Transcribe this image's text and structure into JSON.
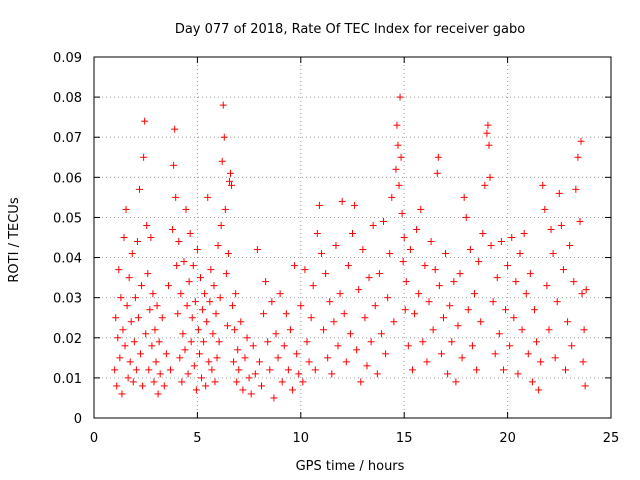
{
  "chart_data": {
    "type": "scatter",
    "title": "Day 077 of 2018, Rate Of TEC Index for receiver gabo",
    "xlabel": "GPS time / hours",
    "ylabel": "ROTI / TECUs",
    "xlim": [
      0,
      25
    ],
    "ylim": [
      0,
      0.09
    ],
    "xticks": [
      0,
      5,
      10,
      15,
      20,
      25
    ],
    "xtick_labels": [
      "0",
      "5",
      "10",
      "15",
      "20",
      "25"
    ],
    "yticks": [
      0,
      0.01,
      0.02,
      0.03,
      0.04,
      0.05,
      0.06,
      0.07,
      0.08,
      0.09
    ],
    "ytick_labels": [
      "0",
      "0.01",
      "0.02",
      "0.03",
      "0.04",
      "0.05",
      "0.06",
      "0.07",
      "0.08",
      "0.09"
    ],
    "grid": true,
    "marker": "+",
    "color": "#ff0000",
    "series": [
      {
        "values": [
          [
            1.0,
            0.012
          ],
          [
            1.05,
            0.025
          ],
          [
            1.1,
            0.008
          ],
          [
            1.15,
            0.02
          ],
          [
            1.2,
            0.037
          ],
          [
            1.25,
            0.015
          ],
          [
            1.3,
            0.03
          ],
          [
            1.35,
            0.006
          ],
          [
            1.4,
            0.022
          ],
          [
            1.45,
            0.045
          ],
          [
            1.5,
            0.018
          ],
          [
            1.55,
            0.052
          ],
          [
            1.6,
            0.028
          ],
          [
            1.65,
            0.01
          ],
          [
            1.7,
            0.035
          ],
          [
            1.75,
            0.014
          ],
          [
            1.8,
            0.024
          ],
          [
            1.85,
            0.041
          ],
          [
            1.9,
            0.009
          ],
          [
            1.95,
            0.019
          ],
          [
            2.0,
            0.03
          ],
          [
            2.05,
            0.012
          ],
          [
            2.1,
            0.044
          ],
          [
            2.15,
            0.025
          ],
          [
            2.2,
            0.057
          ],
          [
            2.25,
            0.016
          ],
          [
            2.3,
            0.033
          ],
          [
            2.35,
            0.008
          ],
          [
            2.4,
            0.065
          ],
          [
            2.45,
            0.074
          ],
          [
            2.5,
            0.021
          ],
          [
            2.55,
            0.048
          ],
          [
            2.6,
            0.036
          ],
          [
            2.65,
            0.012
          ],
          [
            2.7,
            0.027
          ],
          [
            2.75,
            0.045
          ],
          [
            2.8,
            0.018
          ],
          [
            2.85,
            0.031
          ],
          [
            2.9,
            0.009
          ],
          [
            2.95,
            0.022
          ],
          [
            3.0,
            0.014
          ],
          [
            3.05,
            0.028
          ],
          [
            3.1,
            0.006
          ],
          [
            3.15,
            0.019
          ],
          [
            3.2,
            0.011
          ],
          [
            3.3,
            0.025
          ],
          [
            3.4,
            0.008
          ],
          [
            3.5,
            0.016
          ],
          [
            3.6,
            0.033
          ],
          [
            3.7,
            0.012
          ],
          [
            3.8,
            0.047
          ],
          [
            3.85,
            0.063
          ],
          [
            3.9,
            0.072
          ],
          [
            3.95,
            0.055
          ],
          [
            4.0,
            0.038
          ],
          [
            4.05,
            0.026
          ],
          [
            4.1,
            0.044
          ],
          [
            4.15,
            0.015
          ],
          [
            4.2,
            0.031
          ],
          [
            4.25,
            0.009
          ],
          [
            4.3,
            0.021
          ],
          [
            4.35,
            0.039
          ],
          [
            4.4,
            0.017
          ],
          [
            4.45,
            0.052
          ],
          [
            4.5,
            0.028
          ],
          [
            4.55,
            0.011
          ],
          [
            4.6,
            0.034
          ],
          [
            4.65,
            0.046
          ],
          [
            4.7,
            0.019
          ],
          [
            4.75,
            0.025
          ],
          [
            4.8,
            0.038
          ],
          [
            4.85,
            0.013
          ],
          [
            4.9,
            0.029
          ],
          [
            4.95,
            0.007
          ],
          [
            5.0,
            0.042
          ],
          [
            5.05,
            0.022
          ],
          [
            5.1,
            0.016
          ],
          [
            5.15,
            0.035
          ],
          [
            5.2,
            0.01
          ],
          [
            5.25,
            0.027
          ],
          [
            5.3,
            0.019
          ],
          [
            5.35,
            0.031
          ],
          [
            5.4,
            0.008
          ],
          [
            5.45,
            0.024
          ],
          [
            5.5,
            0.055
          ],
          [
            5.55,
            0.014
          ],
          [
            5.6,
            0.029
          ],
          [
            5.65,
            0.037
          ],
          [
            5.7,
            0.012
          ],
          [
            5.75,
            0.021
          ],
          [
            5.8,
            0.033
          ],
          [
            5.85,
            0.009
          ],
          [
            5.9,
            0.026
          ],
          [
            5.95,
            0.015
          ],
          [
            6.0,
            0.043
          ],
          [
            6.05,
            0.019
          ],
          [
            6.1,
            0.03
          ],
          [
            6.15,
            0.048
          ],
          [
            6.2,
            0.064
          ],
          [
            6.25,
            0.078
          ],
          [
            6.3,
            0.07
          ],
          [
            6.35,
            0.052
          ],
          [
            6.4,
            0.036
          ],
          [
            6.45,
            0.023
          ],
          [
            6.5,
            0.041
          ],
          [
            6.55,
            0.059
          ],
          [
            6.6,
            0.061
          ],
          [
            6.65,
            0.058
          ],
          [
            6.7,
            0.028
          ],
          [
            6.75,
            0.014
          ],
          [
            6.8,
            0.022
          ],
          [
            6.85,
            0.031
          ],
          [
            6.9,
            0.009
          ],
          [
            6.95,
            0.017
          ],
          [
            7.0,
            0.012
          ],
          [
            7.1,
            0.024
          ],
          [
            7.2,
            0.007
          ],
          [
            7.3,
            0.015
          ],
          [
            7.4,
            0.02
          ],
          [
            7.5,
            0.01
          ],
          [
            7.6,
            0.006
          ],
          [
            7.7,
            0.018
          ],
          [
            7.8,
            0.011
          ],
          [
            7.9,
            0.042
          ],
          [
            8.0,
            0.014
          ],
          [
            8.1,
            0.008
          ],
          [
            8.2,
            0.026
          ],
          [
            8.3,
            0.034
          ],
          [
            8.4,
            0.019
          ],
          [
            8.5,
            0.012
          ],
          [
            8.6,
            0.029
          ],
          [
            8.7,
            0.005
          ],
          [
            8.8,
            0.021
          ],
          [
            8.9,
            0.015
          ],
          [
            9.0,
            0.031
          ],
          [
            9.1,
            0.009
          ],
          [
            9.2,
            0.018
          ],
          [
            9.3,
            0.026
          ],
          [
            9.4,
            0.012
          ],
          [
            9.5,
            0.022
          ],
          [
            9.6,
            0.007
          ],
          [
            9.7,
            0.038
          ],
          [
            9.8,
            0.016
          ],
          [
            9.9,
            0.011
          ],
          [
            10.0,
            0.028
          ],
          [
            10.1,
            0.009
          ],
          [
            10.2,
            0.037
          ],
          [
            10.3,
            0.019
          ],
          [
            10.4,
            0.014
          ],
          [
            10.5,
            0.025
          ],
          [
            10.6,
            0.033
          ],
          [
            10.7,
            0.012
          ],
          [
            10.8,
            0.046
          ],
          [
            10.9,
            0.053
          ],
          [
            11.0,
            0.041
          ],
          [
            11.1,
            0.022
          ],
          [
            11.2,
            0.036
          ],
          [
            11.3,
            0.015
          ],
          [
            11.4,
            0.029
          ],
          [
            11.5,
            0.011
          ],
          [
            11.6,
            0.024
          ],
          [
            11.7,
            0.043
          ],
          [
            11.8,
            0.018
          ],
          [
            11.9,
            0.031
          ],
          [
            12.0,
            0.054
          ],
          [
            12.1,
            0.026
          ],
          [
            12.2,
            0.014
          ],
          [
            12.3,
            0.038
          ],
          [
            12.4,
            0.021
          ],
          [
            12.5,
            0.046
          ],
          [
            12.6,
            0.053
          ],
          [
            12.7,
            0.017
          ],
          [
            12.8,
            0.032
          ],
          [
            12.9,
            0.009
          ],
          [
            13.0,
            0.042
          ],
          [
            13.1,
            0.025
          ],
          [
            13.2,
            0.013
          ],
          [
            13.3,
            0.035
          ],
          [
            13.4,
            0.019
          ],
          [
            13.5,
            0.048
          ],
          [
            13.6,
            0.028
          ],
          [
            13.7,
            0.011
          ],
          [
            13.8,
            0.036
          ],
          [
            13.9,
            0.021
          ],
          [
            14.0,
            0.049
          ],
          [
            14.1,
            0.016
          ],
          [
            14.2,
            0.03
          ],
          [
            14.3,
            0.041
          ],
          [
            14.4,
            0.055
          ],
          [
            14.5,
            0.024
          ],
          [
            14.6,
            0.062
          ],
          [
            14.65,
            0.073
          ],
          [
            14.7,
            0.068
          ],
          [
            14.75,
            0.058
          ],
          [
            14.8,
            0.08
          ],
          [
            14.85,
            0.065
          ],
          [
            14.9,
            0.051
          ],
          [
            14.95,
            0.039
          ],
          [
            15.0,
            0.045
          ],
          [
            15.05,
            0.027
          ],
          [
            15.1,
            0.034
          ],
          [
            15.2,
            0.018
          ],
          [
            15.3,
            0.042
          ],
          [
            15.4,
            0.012
          ],
          [
            15.5,
            0.026
          ],
          [
            15.6,
            0.047
          ],
          [
            15.7,
            0.031
          ],
          [
            15.8,
            0.052
          ],
          [
            15.9,
            0.019
          ],
          [
            16.0,
            0.038
          ],
          [
            16.1,
            0.014
          ],
          [
            16.2,
            0.029
          ],
          [
            16.3,
            0.044
          ],
          [
            16.4,
            0.022
          ],
          [
            16.5,
            0.037
          ],
          [
            16.6,
            0.061
          ],
          [
            16.65,
            0.065
          ],
          [
            16.7,
            0.033
          ],
          [
            16.8,
            0.016
          ],
          [
            16.9,
            0.025
          ],
          [
            17.0,
            0.041
          ],
          [
            17.1,
            0.011
          ],
          [
            17.2,
            0.028
          ],
          [
            17.3,
            0.019
          ],
          [
            17.4,
            0.034
          ],
          [
            17.5,
            0.009
          ],
          [
            17.6,
            0.023
          ],
          [
            17.7,
            0.036
          ],
          [
            17.8,
            0.015
          ],
          [
            17.9,
            0.055
          ],
          [
            18.0,
            0.05
          ],
          [
            18.1,
            0.027
          ],
          [
            18.2,
            0.042
          ],
          [
            18.3,
            0.018
          ],
          [
            18.4,
            0.031
          ],
          [
            18.5,
            0.012
          ],
          [
            18.6,
            0.039
          ],
          [
            18.7,
            0.024
          ],
          [
            18.8,
            0.046
          ],
          [
            18.9,
            0.058
          ],
          [
            19.0,
            0.071
          ],
          [
            19.05,
            0.073
          ],
          [
            19.1,
            0.068
          ],
          [
            19.15,
            0.06
          ],
          [
            19.2,
            0.043
          ],
          [
            19.3,
            0.029
          ],
          [
            19.4,
            0.016
          ],
          [
            19.5,
            0.035
          ],
          [
            19.6,
            0.021
          ],
          [
            19.7,
            0.044
          ],
          [
            19.8,
            0.012
          ],
          [
            19.9,
            0.027
          ],
          [
            20.0,
            0.038
          ],
          [
            20.1,
            0.018
          ],
          [
            20.2,
            0.045
          ],
          [
            20.3,
            0.025
          ],
          [
            20.4,
            0.034
          ],
          [
            20.5,
            0.011
          ],
          [
            20.6,
            0.041
          ],
          [
            20.7,
            0.022
          ],
          [
            20.8,
            0.046
          ],
          [
            20.9,
            0.031
          ],
          [
            21.0,
            0.016
          ],
          [
            21.1,
            0.036
          ],
          [
            21.2,
            0.009
          ],
          [
            21.3,
            0.027
          ],
          [
            21.4,
            0.019
          ],
          [
            21.5,
            0.007
          ],
          [
            21.6,
            0.014
          ],
          [
            21.7,
            0.058
          ],
          [
            21.8,
            0.052
          ],
          [
            21.9,
            0.033
          ],
          [
            22.0,
            0.022
          ],
          [
            22.1,
            0.047
          ],
          [
            22.2,
            0.041
          ],
          [
            22.3,
            0.015
          ],
          [
            22.4,
            0.029
          ],
          [
            22.5,
            0.056
          ],
          [
            22.6,
            0.048
          ],
          [
            22.7,
            0.037
          ],
          [
            22.8,
            0.012
          ],
          [
            22.9,
            0.024
          ],
          [
            23.0,
            0.043
          ],
          [
            23.1,
            0.018
          ],
          [
            23.2,
            0.034
          ],
          [
            23.3,
            0.057
          ],
          [
            23.4,
            0.065
          ],
          [
            23.5,
            0.049
          ],
          [
            23.55,
            0.069
          ],
          [
            23.6,
            0.031
          ],
          [
            23.65,
            0.014
          ],
          [
            23.7,
            0.022
          ],
          [
            23.75,
            0.008
          ],
          [
            23.8,
            0.032
          ]
        ]
      }
    ]
  }
}
